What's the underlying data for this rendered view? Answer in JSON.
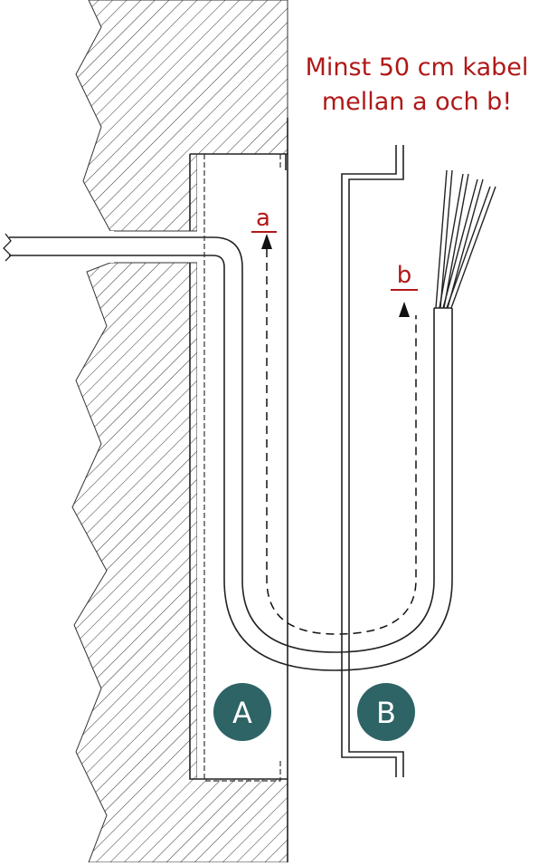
{
  "note": {
    "line1": "Minst 50 cm kabel",
    "line2": "mellan a och b!"
  },
  "markers": {
    "a": "a",
    "b": "b"
  },
  "badges": {
    "A": "A",
    "B": "B"
  },
  "colors": {
    "note": "#b01818",
    "badge": "#2e6466",
    "hatch": "#333333",
    "outline": "#2a2a2a"
  }
}
